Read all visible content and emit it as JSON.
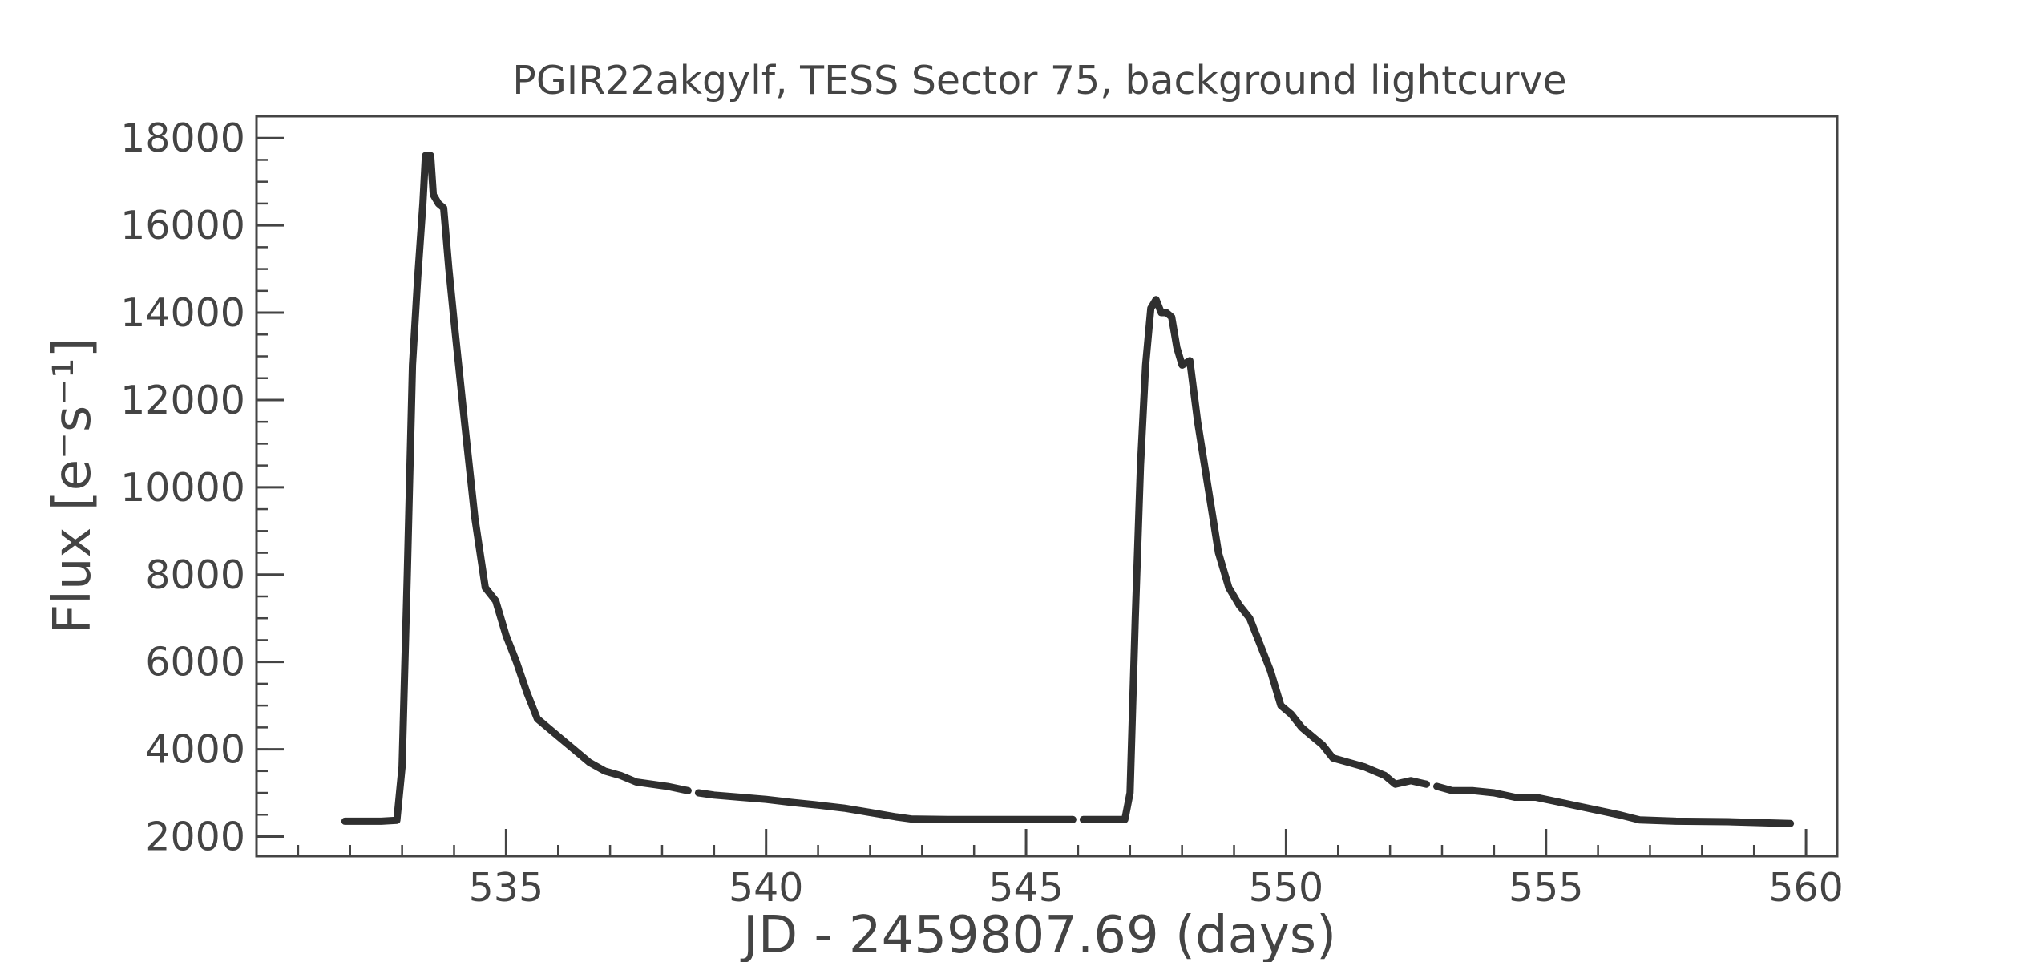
{
  "chart_data": {
    "type": "line",
    "title": "PGIR22akgylf, TESS Sector 75, background lightcurve",
    "xlabel": "JD - 2459807.69 (days)",
    "ylabel": "Flux [e⁻s⁻¹]",
    "xlim": [
      530.2,
      560.6
    ],
    "ylim": [
      1550,
      18500
    ],
    "xticks": [
      535,
      540,
      545,
      550,
      555,
      560
    ],
    "yticks": [
      2000,
      4000,
      6000,
      8000,
      10000,
      12000,
      14000,
      16000,
      18000
    ],
    "grid": false,
    "legend": "none",
    "line_color": "#2f2f2f",
    "series": [
      {
        "segments": [
          [
            [
              531.9,
              2350
            ],
            [
              532.3,
              2350
            ],
            [
              532.6,
              2350
            ],
            [
              532.9,
              2370
            ],
            [
              533.0,
              3600
            ],
            [
              533.1,
              8000
            ],
            [
              533.2,
              12800
            ],
            [
              533.3,
              14800
            ],
            [
              533.4,
              16500
            ],
            [
              533.45,
              17600
            ],
            [
              533.55,
              17600
            ],
            [
              533.6,
              16700
            ],
            [
              533.7,
              16500
            ],
            [
              533.8,
              16400
            ],
            [
              533.9,
              15000
            ],
            [
              534.0,
              13800
            ],
            [
              534.2,
              11500
            ],
            [
              534.4,
              9300
            ],
            [
              534.6,
              7700
            ],
            [
              534.8,
              7400
            ],
            [
              535.0,
              6600
            ],
            [
              535.2,
              6000
            ],
            [
              535.4,
              5300
            ],
            [
              535.6,
              4700
            ],
            [
              535.8,
              4500
            ],
            [
              536.0,
              4300
            ],
            [
              536.3,
              4000
            ],
            [
              536.6,
              3700
            ],
            [
              536.9,
              3500
            ],
            [
              537.2,
              3400
            ],
            [
              537.5,
              3250
            ],
            [
              537.8,
              3200
            ],
            [
              538.1,
              3150
            ],
            [
              538.5,
              3050
            ]
          ],
          [
            [
              538.7,
              3000
            ],
            [
              539.0,
              2950
            ],
            [
              539.5,
              2900
            ],
            [
              540.0,
              2850
            ],
            [
              540.5,
              2780
            ],
            [
              541.0,
              2720
            ],
            [
              541.5,
              2650
            ],
            [
              542.0,
              2550
            ],
            [
              542.5,
              2450
            ],
            [
              542.8,
              2400
            ],
            [
              543.5,
              2390
            ],
            [
              544.5,
              2390
            ],
            [
              545.9,
              2390
            ]
          ],
          [
            [
              546.1,
              2390
            ],
            [
              546.6,
              2390
            ],
            [
              546.9,
              2390
            ],
            [
              547.0,
              3000
            ],
            [
              547.1,
              7000
            ],
            [
              547.2,
              10500
            ],
            [
              547.3,
              12800
            ],
            [
              547.4,
              14100
            ],
            [
              547.5,
              14300
            ],
            [
              547.6,
              14000
            ],
            [
              547.7,
              14000
            ],
            [
              547.8,
              13900
            ],
            [
              547.9,
              13200
            ],
            [
              548.0,
              12800
            ],
            [
              548.15,
              12900
            ],
            [
              548.3,
              11500
            ],
            [
              548.5,
              10000
            ],
            [
              548.7,
              8500
            ],
            [
              548.9,
              7700
            ],
            [
              549.1,
              7300
            ],
            [
              549.3,
              7000
            ],
            [
              549.5,
              6400
            ],
            [
              549.7,
              5800
            ],
            [
              549.9,
              5000
            ],
            [
              550.1,
              4800
            ],
            [
              550.3,
              4500
            ],
            [
              550.5,
              4300
            ],
            [
              550.7,
              4100
            ],
            [
              550.9,
              3800
            ],
            [
              551.2,
              3700
            ],
            [
              551.5,
              3600
            ],
            [
              551.9,
              3400
            ],
            [
              552.1,
              3200
            ],
            [
              552.4,
              3280
            ],
            [
              552.7,
              3200
            ]
          ],
          [
            [
              552.9,
              3150
            ],
            [
              553.2,
              3050
            ],
            [
              553.6,
              3050
            ],
            [
              554.0,
              3000
            ],
            [
              554.4,
              2900
            ],
            [
              554.8,
              2900
            ],
            [
              555.2,
              2800
            ],
            [
              555.6,
              2700
            ],
            [
              556.0,
              2600
            ],
            [
              556.4,
              2500
            ],
            [
              556.8,
              2380
            ],
            [
              557.5,
              2350
            ],
            [
              558.5,
              2340
            ],
            [
              559.7,
              2300
            ]
          ]
        ]
      }
    ]
  }
}
